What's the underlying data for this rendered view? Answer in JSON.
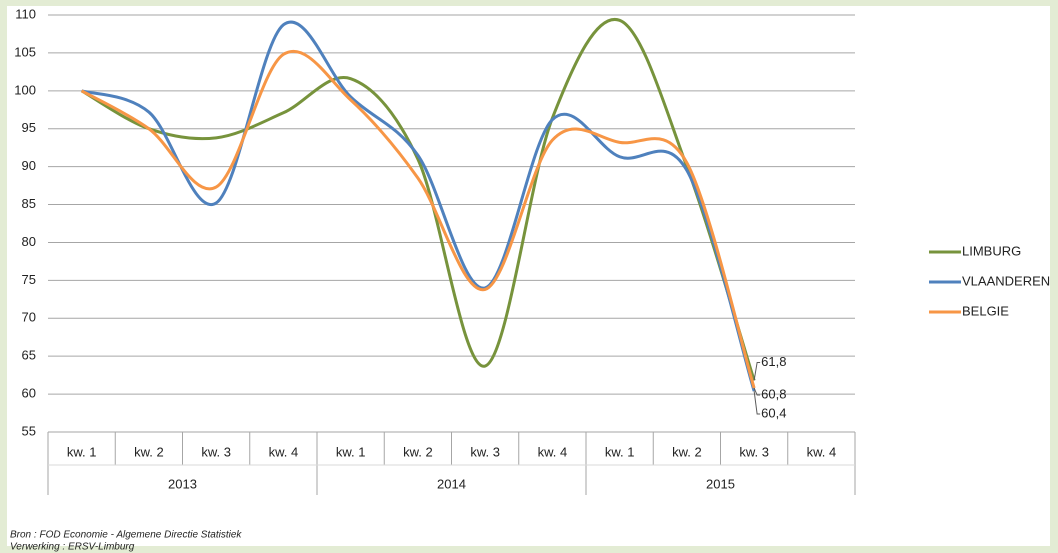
{
  "chart_data": {
    "type": "line",
    "categories": [
      "kw. 1",
      "kw. 2",
      "kw. 3",
      "kw. 4",
      "kw. 1",
      "kw. 2",
      "kw. 3",
      "kw. 4",
      "kw. 1",
      "kw. 2",
      "kw. 3",
      "kw. 4"
    ],
    "category_groups": [
      "2013",
      "2014",
      "2015"
    ],
    "series": [
      {
        "name": "LIMBURG",
        "color": "#77933c",
        "values": [
          100,
          95,
          93.8,
          97.1,
          101.6,
          91,
          63.7,
          96.4,
          109.3,
          90,
          61.8,
          null
        ],
        "value_labels": [
          null,
          null,
          null,
          null,
          null,
          null,
          null,
          null,
          null,
          null,
          "61,8",
          null
        ]
      },
      {
        "name": "VLAANDEREN",
        "color": "#4f81bd",
        "values": [
          100,
          97.2,
          85.2,
          108.7,
          99.2,
          91.5,
          74,
          96.2,
          91.3,
          89.5,
          60.4,
          null
        ],
        "value_labels": [
          null,
          null,
          null,
          null,
          null,
          null,
          null,
          null,
          null,
          null,
          "60,4",
          null
        ]
      },
      {
        "name": "BELGIE",
        "color": "#f79646",
        "values": [
          100,
          95,
          87.3,
          104.8,
          98.8,
          88.5,
          73.8,
          93.5,
          93.2,
          90.5,
          60.8,
          null
        ],
        "value_labels": [
          null,
          null,
          null,
          null,
          null,
          null,
          null,
          null,
          null,
          null,
          "60,8",
          null
        ]
      }
    ],
    "ylim": [
      55,
      110
    ],
    "yticks": [
      55,
      60,
      65,
      70,
      75,
      80,
      85,
      90,
      95,
      100,
      105,
      110
    ],
    "grid": true,
    "legend": "right",
    "smooth": true
  },
  "footer": {
    "source": "Bron : FOD Economie - Algemene Directie Statistiek",
    "processing": "Verwerking : ERSV-Limburg"
  }
}
